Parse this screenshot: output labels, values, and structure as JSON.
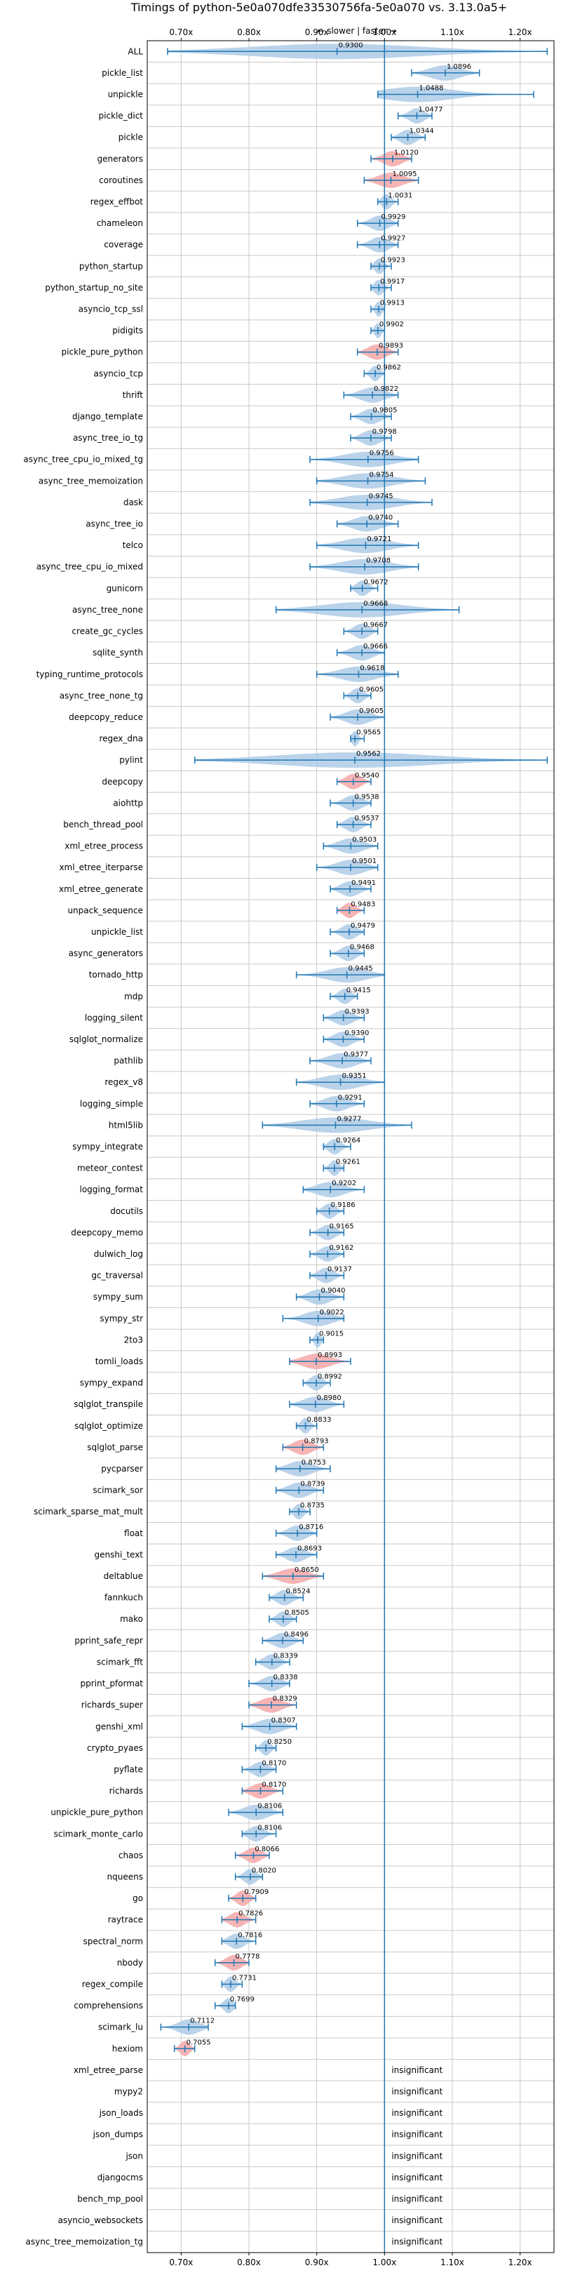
{
  "chart_data": {
    "type": "violin",
    "title": "Timings of python-5e0a070dfe33530756fa-5e0a070 vs. 3.13.0a5+",
    "subtitle": "← slower | faster →",
    "xlim": [
      0.65,
      1.25
    ],
    "xticks": [
      0.7,
      0.8,
      0.9,
      1.0,
      1.1,
      1.2
    ],
    "xtick_labels": [
      "0.70x",
      "0.80x",
      "0.90x",
      "1.00x",
      "1.10x",
      "1.20x"
    ],
    "reference_line": 1.0,
    "grid": true,
    "colors": {
      "faster": "#aecbe6",
      "slower": "#f4a7a7",
      "whisker": "#1f77b4",
      "reference": "#1f77b4"
    },
    "insignificant_label": "insignificant",
    "benchmarks": [
      {
        "name": "ALL",
        "value": 0.93,
        "label": "0.9300",
        "min": 0.68,
        "max": 1.24,
        "slower": false
      },
      {
        "name": "pickle_list",
        "value": 1.0896,
        "label": "1.0896",
        "min": 1.04,
        "max": 1.14,
        "slower": false
      },
      {
        "name": "unpickle",
        "value": 1.0488,
        "label": "1.0488",
        "min": 0.99,
        "max": 1.22,
        "slower": false
      },
      {
        "name": "pickle_dict",
        "value": 1.0477,
        "label": "1.0477",
        "min": 1.02,
        "max": 1.07,
        "slower": false
      },
      {
        "name": "pickle",
        "value": 1.0344,
        "label": "1.0344",
        "min": 1.01,
        "max": 1.06,
        "slower": false
      },
      {
        "name": "generators",
        "value": 1.012,
        "label": "1.0120",
        "min": 0.98,
        "max": 1.04,
        "slower": true
      },
      {
        "name": "coroutines",
        "value": 1.0095,
        "label": "1.0095",
        "min": 0.97,
        "max": 1.05,
        "slower": true
      },
      {
        "name": "regex_effbot",
        "value": 1.0031,
        "label": "1.0031",
        "min": 0.99,
        "max": 1.02,
        "slower": false
      },
      {
        "name": "chameleon",
        "value": 0.9929,
        "label": "0.9929",
        "min": 0.96,
        "max": 1.02,
        "slower": false
      },
      {
        "name": "coverage",
        "value": 0.9927,
        "label": "0.9927",
        "min": 0.96,
        "max": 1.02,
        "slower": false
      },
      {
        "name": "python_startup",
        "value": 0.9923,
        "label": "0.9923",
        "min": 0.98,
        "max": 1.01,
        "slower": false
      },
      {
        "name": "python_startup_no_site",
        "value": 0.9917,
        "label": "0.9917",
        "min": 0.98,
        "max": 1.01,
        "slower": false
      },
      {
        "name": "asyncio_tcp_ssl",
        "value": 0.9913,
        "label": "0.9913",
        "min": 0.98,
        "max": 1.0,
        "slower": false
      },
      {
        "name": "pidigits",
        "value": 0.9902,
        "label": "0.9902",
        "min": 0.98,
        "max": 1.0,
        "slower": false
      },
      {
        "name": "pickle_pure_python",
        "value": 0.9893,
        "label": "0.9893",
        "min": 0.96,
        "max": 1.02,
        "slower": true
      },
      {
        "name": "asyncio_tcp",
        "value": 0.9862,
        "label": "0.9862",
        "min": 0.97,
        "max": 1.0,
        "slower": false
      },
      {
        "name": "thrift",
        "value": 0.9822,
        "label": "0.9822",
        "min": 0.94,
        "max": 1.02,
        "slower": false
      },
      {
        "name": "django_template",
        "value": 0.9805,
        "label": "0.9805",
        "min": 0.95,
        "max": 1.01,
        "slower": false
      },
      {
        "name": "async_tree_io_tg",
        "value": 0.9798,
        "label": "0.9798",
        "min": 0.95,
        "max": 1.01,
        "slower": false
      },
      {
        "name": "async_tree_cpu_io_mixed_tg",
        "value": 0.9756,
        "label": "0.9756",
        "min": 0.89,
        "max": 1.05,
        "slower": false
      },
      {
        "name": "async_tree_memoization",
        "value": 0.9754,
        "label": "0.9754",
        "min": 0.9,
        "max": 1.06,
        "slower": false
      },
      {
        "name": "dask",
        "value": 0.9745,
        "label": "0.9745",
        "min": 0.89,
        "max": 1.07,
        "slower": false
      },
      {
        "name": "async_tree_io",
        "value": 0.974,
        "label": "0.9740",
        "min": 0.93,
        "max": 1.02,
        "slower": false
      },
      {
        "name": "telco",
        "value": 0.9721,
        "label": "0.9721",
        "min": 0.9,
        "max": 1.05,
        "slower": false
      },
      {
        "name": "async_tree_cpu_io_mixed",
        "value": 0.9708,
        "label": "0.9708",
        "min": 0.89,
        "max": 1.05,
        "slower": false
      },
      {
        "name": "gunicorn",
        "value": 0.9672,
        "label": "0.9672",
        "min": 0.95,
        "max": 0.99,
        "slower": false
      },
      {
        "name": "async_tree_none",
        "value": 0.9668,
        "label": "0.9668",
        "min": 0.84,
        "max": 1.11,
        "slower": false
      },
      {
        "name": "create_gc_cycles",
        "value": 0.9667,
        "label": "0.9667",
        "min": 0.94,
        "max": 0.99,
        "slower": false
      },
      {
        "name": "sqlite_synth",
        "value": 0.9666,
        "label": "0.9666",
        "min": 0.93,
        "max": 1.0,
        "slower": false
      },
      {
        "name": "typing_runtime_protocols",
        "value": 0.9618,
        "label": "0.9618",
        "min": 0.9,
        "max": 1.02,
        "slower": false
      },
      {
        "name": "async_tree_none_tg",
        "value": 0.9605,
        "label": "0.9605",
        "min": 0.94,
        "max": 0.98,
        "slower": false
      },
      {
        "name": "deepcopy_reduce",
        "value": 0.9605,
        "label": "0.9605",
        "min": 0.92,
        "max": 1.0,
        "slower": false
      },
      {
        "name": "regex_dna",
        "value": 0.9565,
        "label": "0.9565",
        "min": 0.95,
        "max": 0.97,
        "slower": false
      },
      {
        "name": "pylint",
        "value": 0.9562,
        "label": "0.9562",
        "min": 0.72,
        "max": 1.24,
        "slower": false
      },
      {
        "name": "deepcopy",
        "value": 0.954,
        "label": "0.9540",
        "min": 0.93,
        "max": 0.98,
        "slower": true
      },
      {
        "name": "aiohttp",
        "value": 0.9538,
        "label": "0.9538",
        "min": 0.92,
        "max": 0.98,
        "slower": false
      },
      {
        "name": "bench_thread_pool",
        "value": 0.9537,
        "label": "0.9537",
        "min": 0.93,
        "max": 0.98,
        "slower": false
      },
      {
        "name": "xml_etree_process",
        "value": 0.9503,
        "label": "0.9503",
        "min": 0.91,
        "max": 0.99,
        "slower": false
      },
      {
        "name": "xml_etree_iterparse",
        "value": 0.9501,
        "label": "0.9501",
        "min": 0.9,
        "max": 0.99,
        "slower": false
      },
      {
        "name": "xml_etree_generate",
        "value": 0.9491,
        "label": "0.9491",
        "min": 0.92,
        "max": 0.98,
        "slower": false
      },
      {
        "name": "unpack_sequence",
        "value": 0.9483,
        "label": "0.9483",
        "min": 0.93,
        "max": 0.97,
        "slower": true
      },
      {
        "name": "unpickle_list",
        "value": 0.9479,
        "label": "0.9479",
        "min": 0.92,
        "max": 0.97,
        "slower": false
      },
      {
        "name": "async_generators",
        "value": 0.9468,
        "label": "0.9468",
        "min": 0.92,
        "max": 0.97,
        "slower": false
      },
      {
        "name": "tornado_http",
        "value": 0.9445,
        "label": "0.9445",
        "min": 0.87,
        "max": 1.0,
        "slower": false
      },
      {
        "name": "mdp",
        "value": 0.9415,
        "label": "0.9415",
        "min": 0.92,
        "max": 0.96,
        "slower": false
      },
      {
        "name": "logging_silent",
        "value": 0.9393,
        "label": "0.9393",
        "min": 0.91,
        "max": 0.97,
        "slower": false
      },
      {
        "name": "sqlglot_normalize",
        "value": 0.939,
        "label": "0.9390",
        "min": 0.91,
        "max": 0.97,
        "slower": false
      },
      {
        "name": "pathlib",
        "value": 0.9377,
        "label": "0.9377",
        "min": 0.89,
        "max": 0.98,
        "slower": false
      },
      {
        "name": "regex_v8",
        "value": 0.9351,
        "label": "0.9351",
        "min": 0.87,
        "max": 1.0,
        "slower": false
      },
      {
        "name": "logging_simple",
        "value": 0.9291,
        "label": "0.9291",
        "min": 0.89,
        "max": 0.97,
        "slower": false
      },
      {
        "name": "html5lib",
        "value": 0.9277,
        "label": "0.9277",
        "min": 0.82,
        "max": 1.04,
        "slower": false
      },
      {
        "name": "sympy_integrate",
        "value": 0.9264,
        "label": "0.9264",
        "min": 0.91,
        "max": 0.95,
        "slower": false
      },
      {
        "name": "meteor_contest",
        "value": 0.9261,
        "label": "0.9261",
        "min": 0.91,
        "max": 0.94,
        "slower": false
      },
      {
        "name": "logging_format",
        "value": 0.9202,
        "label": "0.9202",
        "min": 0.88,
        "max": 0.97,
        "slower": false
      },
      {
        "name": "docutils",
        "value": 0.9186,
        "label": "0.9186",
        "min": 0.9,
        "max": 0.94,
        "slower": false
      },
      {
        "name": "deepcopy_memo",
        "value": 0.9165,
        "label": "0.9165",
        "min": 0.89,
        "max": 0.94,
        "slower": false
      },
      {
        "name": "dulwich_log",
        "value": 0.9162,
        "label": "0.9162",
        "min": 0.89,
        "max": 0.94,
        "slower": false
      },
      {
        "name": "gc_traversal",
        "value": 0.9137,
        "label": "0.9137",
        "min": 0.89,
        "max": 0.94,
        "slower": false
      },
      {
        "name": "sympy_sum",
        "value": 0.904,
        "label": "0.9040",
        "min": 0.87,
        "max": 0.94,
        "slower": false
      },
      {
        "name": "sympy_str",
        "value": 0.9022,
        "label": "0.9022",
        "min": 0.85,
        "max": 0.94,
        "slower": false
      },
      {
        "name": "2to3",
        "value": 0.9015,
        "label": "0.9015",
        "min": 0.89,
        "max": 0.91,
        "slower": false
      },
      {
        "name": "tomli_loads",
        "value": 0.8993,
        "label": "0.8993",
        "min": 0.86,
        "max": 0.95,
        "slower": true
      },
      {
        "name": "sympy_expand",
        "value": 0.8992,
        "label": "0.8992",
        "min": 0.88,
        "max": 0.92,
        "slower": false
      },
      {
        "name": "sqlglot_transpile",
        "value": 0.898,
        "label": "0.8980",
        "min": 0.86,
        "max": 0.94,
        "slower": false
      },
      {
        "name": "sqlglot_optimize",
        "value": 0.8833,
        "label": "0.8833",
        "min": 0.87,
        "max": 0.9,
        "slower": false
      },
      {
        "name": "sqlglot_parse",
        "value": 0.8793,
        "label": "0.8793",
        "min": 0.85,
        "max": 0.91,
        "slower": true
      },
      {
        "name": "pycparser",
        "value": 0.8753,
        "label": "0.8753",
        "min": 0.84,
        "max": 0.92,
        "slower": false
      },
      {
        "name": "scimark_sor",
        "value": 0.8739,
        "label": "0.8739",
        "min": 0.84,
        "max": 0.91,
        "slower": false
      },
      {
        "name": "scimark_sparse_mat_mult",
        "value": 0.8735,
        "label": "0.8735",
        "min": 0.86,
        "max": 0.89,
        "slower": false
      },
      {
        "name": "float",
        "value": 0.8716,
        "label": "0.8716",
        "min": 0.84,
        "max": 0.9,
        "slower": false
      },
      {
        "name": "genshi_text",
        "value": 0.8693,
        "label": "0.8693",
        "min": 0.84,
        "max": 0.9,
        "slower": false
      },
      {
        "name": "deltablue",
        "value": 0.865,
        "label": "0.8650",
        "min": 0.82,
        "max": 0.91,
        "slower": true
      },
      {
        "name": "fannkuch",
        "value": 0.8524,
        "label": "0.8524",
        "min": 0.83,
        "max": 0.88,
        "slower": false
      },
      {
        "name": "mako",
        "value": 0.8505,
        "label": "0.8505",
        "min": 0.83,
        "max": 0.87,
        "slower": false
      },
      {
        "name": "pprint_safe_repr",
        "value": 0.8496,
        "label": "0.8496",
        "min": 0.82,
        "max": 0.88,
        "slower": false
      },
      {
        "name": "scimark_fft",
        "value": 0.8339,
        "label": "0.8339",
        "min": 0.81,
        "max": 0.86,
        "slower": false
      },
      {
        "name": "pprint_pformat",
        "value": 0.8338,
        "label": "0.8338",
        "min": 0.8,
        "max": 0.86,
        "slower": false
      },
      {
        "name": "richards_super",
        "value": 0.8329,
        "label": "0.8329",
        "min": 0.8,
        "max": 0.87,
        "slower": true
      },
      {
        "name": "genshi_xml",
        "value": 0.8307,
        "label": "0.8307",
        "min": 0.79,
        "max": 0.87,
        "slower": false
      },
      {
        "name": "crypto_pyaes",
        "value": 0.825,
        "label": "0.8250",
        "min": 0.81,
        "max": 0.84,
        "slower": false
      },
      {
        "name": "pyflate",
        "value": 0.817,
        "label": "0.8170",
        "min": 0.79,
        "max": 0.84,
        "slower": false
      },
      {
        "name": "richards",
        "value": 0.817,
        "label": "0.8170",
        "min": 0.79,
        "max": 0.85,
        "slower": true
      },
      {
        "name": "unpickle_pure_python",
        "value": 0.8106,
        "label": "0.8106",
        "min": 0.77,
        "max": 0.85,
        "slower": false
      },
      {
        "name": "scimark_monte_carlo",
        "value": 0.8106,
        "label": "0.8106",
        "min": 0.79,
        "max": 0.84,
        "slower": false
      },
      {
        "name": "chaos",
        "value": 0.8066,
        "label": "0.8066",
        "min": 0.78,
        "max": 0.83,
        "slower": true
      },
      {
        "name": "nqueens",
        "value": 0.802,
        "label": "0.8020",
        "min": 0.78,
        "max": 0.82,
        "slower": false
      },
      {
        "name": "go",
        "value": 0.7909,
        "label": "0.7909",
        "min": 0.77,
        "max": 0.81,
        "slower": true
      },
      {
        "name": "raytrace",
        "value": 0.7826,
        "label": "0.7826",
        "min": 0.76,
        "max": 0.81,
        "slower": true
      },
      {
        "name": "spectral_norm",
        "value": 0.7816,
        "label": "0.7816",
        "min": 0.76,
        "max": 0.81,
        "slower": false
      },
      {
        "name": "nbody",
        "value": 0.7778,
        "label": "0.7778",
        "min": 0.75,
        "max": 0.8,
        "slower": true
      },
      {
        "name": "regex_compile",
        "value": 0.7731,
        "label": "0.7731",
        "min": 0.76,
        "max": 0.79,
        "slower": false
      },
      {
        "name": "comprehensions",
        "value": 0.7699,
        "label": "0.7699",
        "min": 0.75,
        "max": 0.78,
        "slower": false
      },
      {
        "name": "scimark_lu",
        "value": 0.7112,
        "label": "0.7112",
        "min": 0.67,
        "max": 0.74,
        "slower": false
      },
      {
        "name": "hexiom",
        "value": 0.7055,
        "label": "0.7055",
        "min": 0.69,
        "max": 0.72,
        "slower": true
      },
      {
        "name": "xml_etree_parse",
        "value": null,
        "label": "insignificant",
        "min": null,
        "max": null,
        "slower": false
      },
      {
        "name": "mypy2",
        "value": null,
        "label": "insignificant",
        "min": null,
        "max": null,
        "slower": false
      },
      {
        "name": "json_loads",
        "value": null,
        "label": "insignificant",
        "min": null,
        "max": null,
        "slower": false
      },
      {
        "name": "json_dumps",
        "value": null,
        "label": "insignificant",
        "min": null,
        "max": null,
        "slower": false
      },
      {
        "name": "json",
        "value": null,
        "label": "insignificant",
        "min": null,
        "max": null,
        "slower": false
      },
      {
        "name": "djangocms",
        "value": null,
        "label": "insignificant",
        "min": null,
        "max": null,
        "slower": false
      },
      {
        "name": "bench_mp_pool",
        "value": null,
        "label": "insignificant",
        "min": null,
        "max": null,
        "slower": false
      },
      {
        "name": "asyncio_websockets",
        "value": null,
        "label": "insignificant",
        "min": null,
        "max": null,
        "slower": false
      },
      {
        "name": "async_tree_memoization_tg",
        "value": null,
        "label": "insignificant",
        "min": null,
        "max": null,
        "slower": false
      }
    ]
  }
}
